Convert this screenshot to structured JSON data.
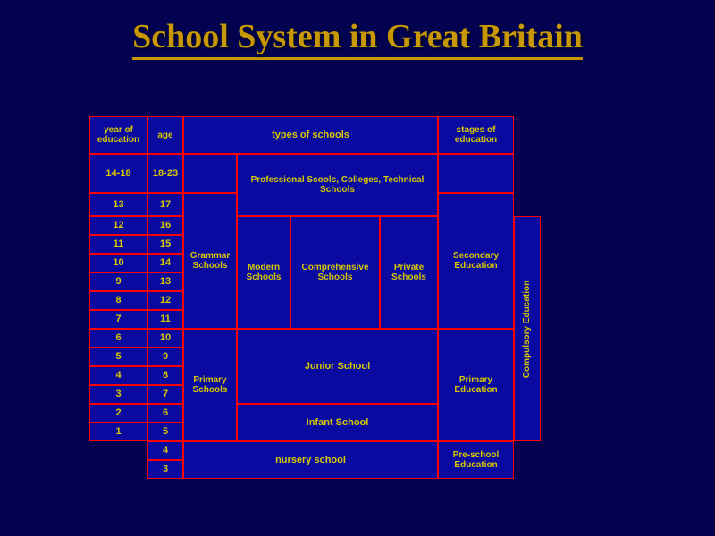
{
  "title": {
    "text": "School System in Great Britain",
    "fontsize": 38
  },
  "colors": {
    "background": "#020250",
    "cell_bg": "#0a0aa0",
    "border": "#ff0000",
    "text": "#d8c800",
    "title": "#c89800"
  },
  "layout": {
    "cols": [
      0,
      65,
      105,
      165,
      225,
      325,
      390,
      475,
      505
    ],
    "rows": [
      0,
      42,
      86,
      112,
      133,
      154,
      175,
      196,
      217,
      238,
      259,
      280,
      301,
      322,
      343,
      364,
      385,
      406
    ]
  },
  "header": {
    "year": "year of education",
    "age": "age",
    "types": "types of schools",
    "stages": "stages of education"
  },
  "post": {
    "year": "14-18",
    "age": "18-23",
    "label": "Professional Scools, Colleges, Technical Schools"
  },
  "year13": {
    "year": "13",
    "age": "17"
  },
  "years_sec": [
    "12",
    "11",
    "10",
    "9",
    "8",
    "7"
  ],
  "ages_sec": [
    "16",
    "15",
    "14",
    "13",
    "12",
    "11"
  ],
  "years_pri": [
    "6",
    "5",
    "4",
    "3",
    "2",
    "1"
  ],
  "ages_pri": [
    "10",
    "9",
    "8",
    "7",
    "6",
    "5"
  ],
  "ages_nursery": [
    "4",
    "3"
  ],
  "schools": {
    "grammar": "Grammar Schools",
    "modern": "Modern Schools",
    "comprehensive": "Comprehensive Schools",
    "private": "Private Schools",
    "primary": "Primary Schools",
    "junior": "Junior School",
    "infant": "Infant School",
    "nursery": "nursery school"
  },
  "stages": {
    "secondary": "Secondary Education",
    "primary": "Primary Education",
    "preschool": "Pre-school Education",
    "compulsory": "Compulsory Education"
  },
  "fontsize": {
    "header": 10,
    "big": 11,
    "small": 10,
    "tiny": 9
  }
}
